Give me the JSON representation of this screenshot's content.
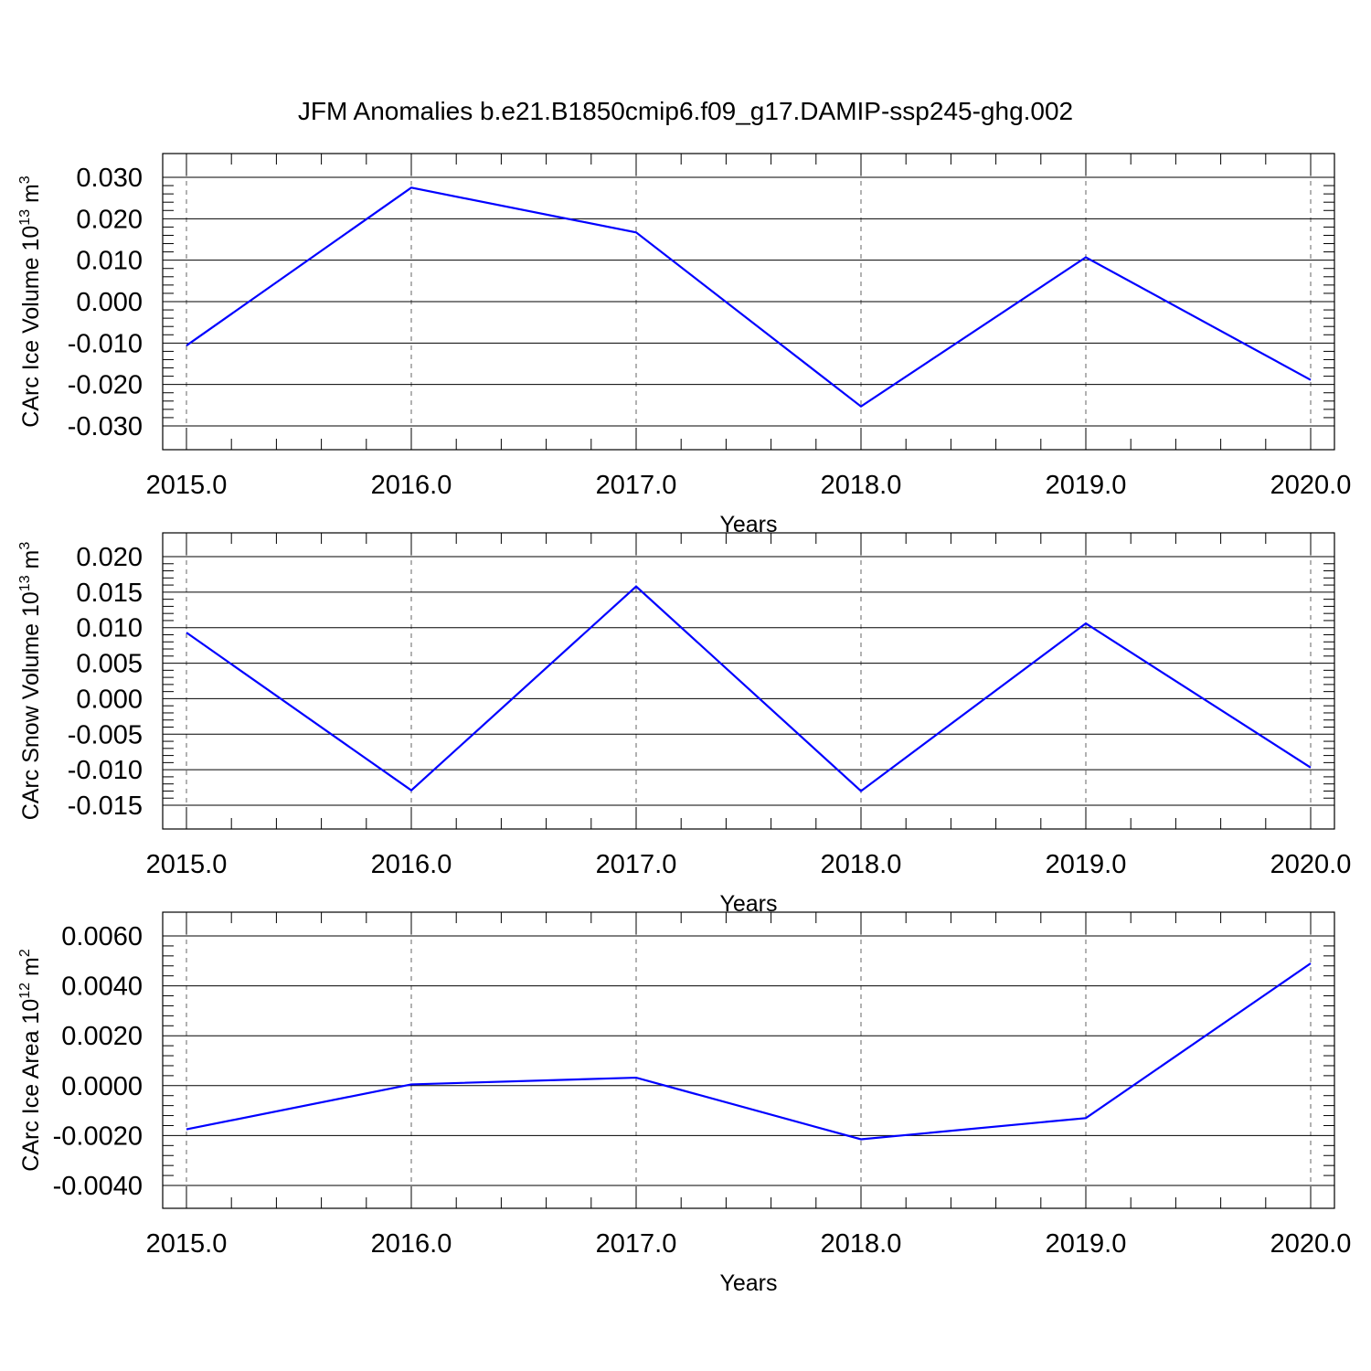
{
  "figure": {
    "title": "JFM Anomalies b.e21.B1850cmip6.f09_g17.DAMIP-ssp245-ghg.002"
  },
  "chart_data": [
    {
      "type": "line",
      "xlabel": "Years",
      "ylabel": {
        "text": "CArc Ice Volume 10",
        "sup": "13",
        "unit": " m",
        "unit_sup": "3"
      },
      "x": [
        2015,
        2016,
        2017,
        2018,
        2019,
        2020
      ],
      "x_tick_labels": [
        "2015.0",
        "2016.0",
        "2017.0",
        "2018.0",
        "2019.0",
        "2020.0"
      ],
      "xlim": [
        2015,
        2020.1
      ],
      "ylim": [
        -0.03,
        0.03
      ],
      "y_ticks": [
        -0.03,
        -0.02,
        -0.01,
        0.0,
        0.01,
        0.02,
        0.03
      ],
      "y_tick_labels": [
        "-0.030",
        "-0.020",
        "-0.010",
        "0.000",
        "0.010",
        "0.020",
        "0.030"
      ],
      "series": [
        {
          "values": [
            -0.0106,
            0.0275,
            0.0167,
            -0.0253,
            0.0107,
            -0.0189
          ],
          "color": "#0000ff"
        }
      ],
      "grid": "vertical-dashed"
    },
    {
      "type": "line",
      "xlabel": "Years",
      "ylabel": {
        "text": "CArc Snow Volume 10",
        "sup": "13",
        "unit": " m",
        "unit_sup": "3"
      },
      "x": [
        2015,
        2016,
        2017,
        2018,
        2019,
        2020
      ],
      "x_tick_labels": [
        "2015.0",
        "2016.0",
        "2017.0",
        "2018.0",
        "2019.0",
        "2020.0"
      ],
      "xlim": [
        2015,
        2020.1
      ],
      "ylim": [
        -0.015,
        0.02
      ],
      "y_ticks": [
        -0.015,
        -0.01,
        -0.005,
        0.0,
        0.005,
        0.01,
        0.015,
        0.02
      ],
      "y_tick_labels": [
        "-0.015",
        "-0.010",
        "-0.005",
        "0.000",
        "0.005",
        "0.010",
        "0.015",
        "0.020"
      ],
      "series": [
        {
          "values": [
            0.0093,
            -0.0129,
            0.0158,
            -0.013,
            0.0106,
            -0.0097
          ],
          "color": "#0000ff"
        }
      ],
      "grid": "vertical-dashed"
    },
    {
      "type": "line",
      "xlabel": "Years",
      "ylabel": {
        "text": "CArc Ice Area 10",
        "sup": "12",
        "unit": " m",
        "unit_sup": "2"
      },
      "x": [
        2015,
        2016,
        2017,
        2018,
        2019,
        2020
      ],
      "x_tick_labels": [
        "2015.0",
        "2016.0",
        "2017.0",
        "2018.0",
        "2019.0",
        "2020.0"
      ],
      "xlim": [
        2015,
        2020.1
      ],
      "ylim": [
        -0.004,
        0.006
      ],
      "y_ticks": [
        -0.004,
        -0.002,
        0.0,
        0.002,
        0.004,
        0.006
      ],
      "y_tick_labels": [
        "-0.0040",
        "-0.0020",
        "0.0000",
        "0.0020",
        "0.0040",
        "0.0060"
      ],
      "series": [
        {
          "values": [
            -0.00175,
            5e-05,
            0.00032,
            -0.00215,
            -0.0013,
            0.0049
          ],
          "color": "#0000ff"
        }
      ],
      "grid": "vertical-dashed"
    }
  ]
}
